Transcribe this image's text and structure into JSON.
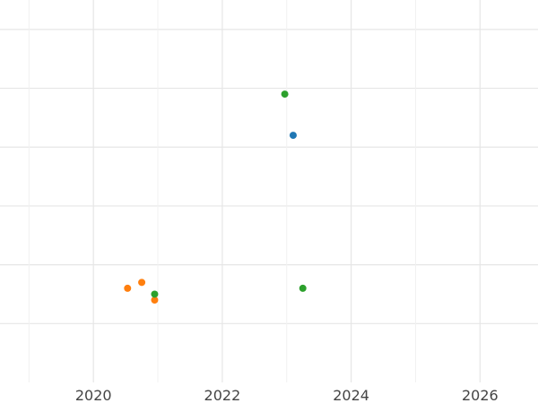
{
  "chart_data": {
    "type": "scatter",
    "title": "",
    "xlabel": "",
    "ylabel": "",
    "xlim": [
      2018.55,
      2026.9
    ],
    "ylim": [
      0,
      6.5
    ],
    "x_ticks": [
      2020,
      2022,
      2024,
      2026
    ],
    "x_tick_labels": [
      "2020",
      "2022",
      "2024",
      "2026"
    ],
    "y_gridlines": [
      1,
      2,
      3,
      4,
      5,
      6
    ],
    "grid": true,
    "legend": "none",
    "series": [
      {
        "color": "#1f77b4",
        "points": [
          {
            "x": 2023.1,
            "y": 4.2
          }
        ]
      },
      {
        "color": "#ff7f0e",
        "points": [
          {
            "x": 2020.53,
            "y": 1.6
          },
          {
            "x": 2020.75,
            "y": 1.7
          },
          {
            "x": 2020.95,
            "y": 1.4
          }
        ]
      },
      {
        "color": "#2ca02c",
        "points": [
          {
            "x": 2022.97,
            "y": 4.9
          },
          {
            "x": 2020.95,
            "y": 1.5
          },
          {
            "x": 2023.25,
            "y": 1.6
          }
        ]
      }
    ]
  }
}
